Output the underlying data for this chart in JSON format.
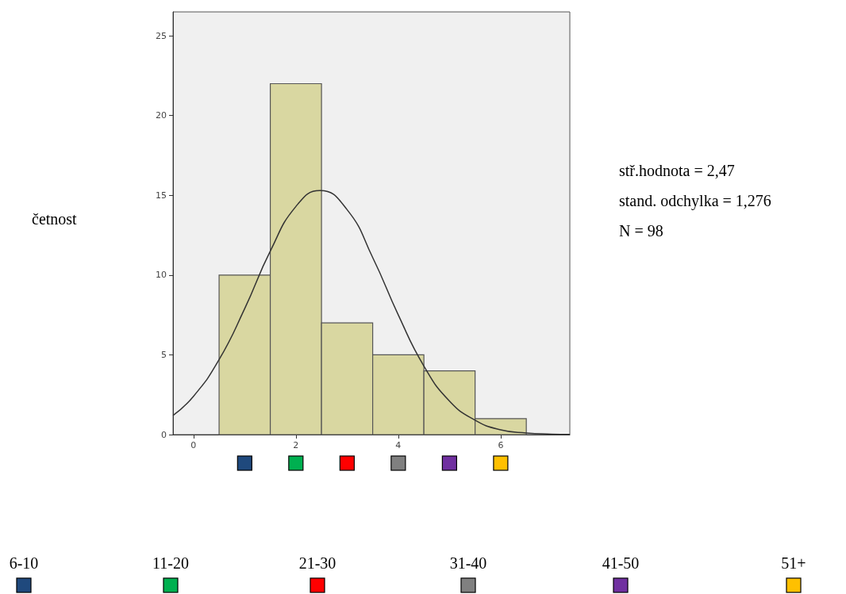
{
  "chart_data": {
    "type": "histogram",
    "ylabel": "četnost",
    "bins": [
      0.5,
      1.5,
      2.5,
      3.5,
      4.5,
      5.5,
      6.5
    ],
    "values": [
      10,
      22,
      7,
      5,
      4,
      1
    ],
    "color": "#d9d7a1",
    "series": [
      {
        "type": "line",
        "color": "#333333",
        "x": [
          -0.4,
          0,
          0.5,
          1,
          1.5,
          2,
          2.47,
          3,
          3.5,
          4,
          4.5,
          5,
          5.5,
          6,
          6.5,
          7,
          7.35
        ],
        "values": [
          1.2,
          2.4,
          4.7,
          7.9,
          11.5,
          14.3,
          15.3,
          14.1,
          11.1,
          7.5,
          4.3,
          2.1,
          0.9,
          0.3,
          0.1,
          0.03,
          0.01
        ]
      }
    ],
    "xlim": [
      -0.4,
      7.35
    ],
    "xticks": [
      0,
      2,
      4,
      6
    ],
    "ylim": [
      0,
      26.5
    ],
    "yticks": [
      0,
      5,
      10,
      15,
      20,
      25
    ],
    "grid": false,
    "marker": "none",
    "line_style": "solid",
    "annotations": [
      "stř.hodnota = 2,47",
      "stand. odchylka = 1,276",
      "N = 98",
      "6-10",
      "11-20",
      "21-30",
      "31-40",
      "41-50",
      "51+"
    ]
  }
}
